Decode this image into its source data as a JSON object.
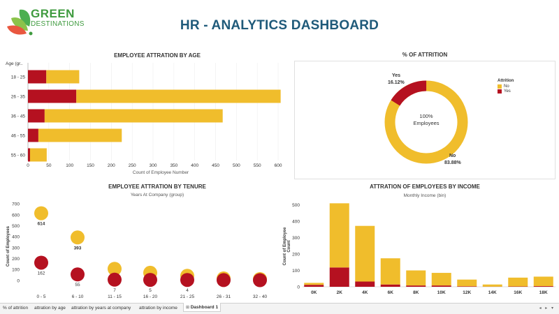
{
  "logo": {
    "line1": "GREEN",
    "line2": "DESTINATIONS"
  },
  "header": {
    "title": "HR - ANALYTICS DASHBOARD"
  },
  "colors": {
    "no": "#f0bd2c",
    "yes": "#b51120",
    "title": "#1f5a7a",
    "logo_green": "#3f9b3f"
  },
  "age_chart": {
    "title": "EMPLOYEE ATTRATION BY AGE",
    "axis_header": "Age (gr..",
    "xlabel": "Count of Employee Number",
    "xticks": [
      0,
      50,
      100,
      150,
      200,
      250,
      300,
      350,
      400,
      450,
      500,
      550,
      600
    ]
  },
  "attrition_chart": {
    "title": "% OF ATTRITION",
    "center_value": "100%",
    "center_label": "Employees",
    "yes_label": "Yes",
    "yes_value": "16.12%",
    "no_label": "No",
    "no_value": "83.88%",
    "legend_title": "Attrition",
    "legend_no": "No",
    "legend_yes": "Yes"
  },
  "tenure_chart": {
    "title": "EMPLOYEE ATTRATION BY TENURE",
    "subtitle": "Years At Company (group)",
    "ylabel": "Count of Employees",
    "yticks": [
      0,
      100,
      200,
      300,
      400,
      500,
      600,
      700
    ]
  },
  "income_chart": {
    "title": "ATTRATION OF EMPLOYEES BY INCOME",
    "subtitle": "Monthly Income (bin)",
    "ylabel": "Count of Employee Count",
    "yticks": [
      0,
      100,
      200,
      300,
      400,
      500
    ]
  },
  "chart_data": [
    {
      "type": "bar",
      "orientation": "horizontal",
      "stacked": true,
      "title": "EMPLOYEE ATTRATION BY AGE",
      "categories": [
        "18 - 25",
        "26 - 35",
        "36 - 45",
        "46 - 55",
        "55 - 60"
      ],
      "series": [
        {
          "name": "Yes",
          "values": [
            44,
            116,
            40,
            25,
            5
          ]
        },
        {
          "name": "No",
          "values": [
            79,
            490,
            427,
            200,
            40
          ]
        }
      ],
      "xlabel": "Count of Employee Number",
      "xlim": [
        0,
        620
      ]
    },
    {
      "type": "pie",
      "title": "% OF ATTRITION",
      "categories": [
        "No",
        "Yes"
      ],
      "values": [
        83.88,
        16.12
      ],
      "legend": "right"
    },
    {
      "type": "scatter",
      "title": "EMPLOYEE ATTRATION BY TENURE",
      "categories": [
        "0 - 5",
        "6 - 10",
        "11 - 15",
        "16 - 20",
        "21 - 25",
        "26 - 31",
        "32 - 40"
      ],
      "series": [
        {
          "name": "No",
          "values": [
            614,
            393,
            106,
            70,
            42,
            18,
            12
          ]
        },
        {
          "name": "Yes",
          "values": [
            162,
            55,
            7,
            5,
            4,
            3,
            2
          ]
        }
      ],
      "data_labels": {
        "No": [
          "614",
          "393",
          "",
          "",
          "",
          "",
          ""
        ],
        "Yes": [
          "162",
          "55",
          "7",
          "5",
          "4",
          "",
          ""
        ]
      },
      "ylabel": "Count of Employees",
      "ylim": [
        -20,
        720
      ]
    },
    {
      "type": "bar",
      "stacked": true,
      "title": "ATTRATION OF EMPLOYEES BY INCOME",
      "categories": [
        "0K",
        "2K",
        "4K",
        "6K",
        "8K",
        "10K",
        "12K",
        "14K",
        "16K",
        "18K"
      ],
      "series": [
        {
          "name": "Yes",
          "values": [
            12,
            118,
            32,
            14,
            8,
            8,
            3,
            1,
            2,
            4
          ]
        },
        {
          "name": "No",
          "values": [
            12,
            392,
            340,
            160,
            92,
            77,
            41,
            13,
            54,
            58
          ]
        }
      ],
      "ylabel": "Count of Employee Count",
      "ylim": [
        0,
        520
      ]
    }
  ],
  "tabs": [
    {
      "label": "% of attrition"
    },
    {
      "label": "attration by age"
    },
    {
      "label": "attration by years at company"
    },
    {
      "label": "attration by income"
    },
    {
      "label": "Dashboard 1"
    }
  ]
}
